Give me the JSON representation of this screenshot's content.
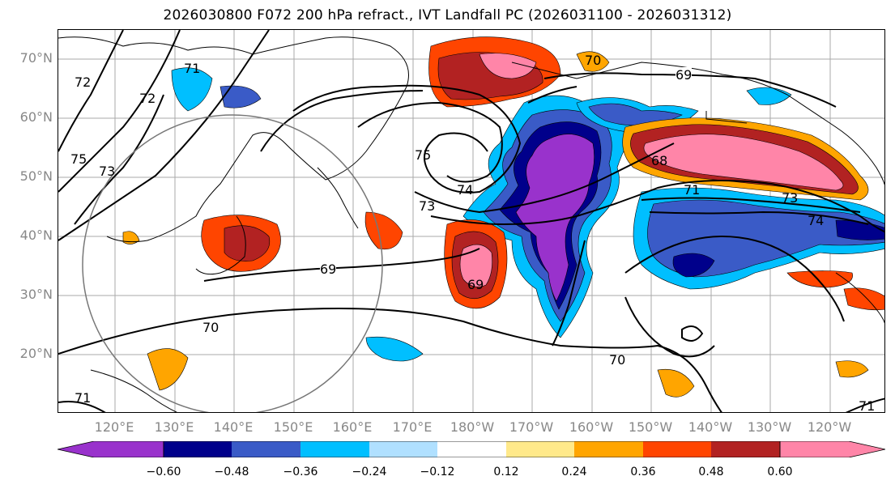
{
  "title": "2026030800 F072 200 hPa refract., IVT Landfall PC (2026031100 - 2026031312)",
  "map": {
    "lat_labels": [
      "70°N",
      "60°N",
      "50°N",
      "40°N",
      "30°N",
      "20°N"
    ],
    "lon_labels": [
      "120°E",
      "130°E",
      "140°E",
      "150°E",
      "160°E",
      "170°E",
      "180°W",
      "170°W",
      "160°W",
      "150°W",
      "140°W",
      "130°W",
      "120°W"
    ],
    "contour_labels": [
      "71",
      "72",
      "72",
      "75",
      "73",
      "75",
      "73",
      "74",
      "69",
      "70",
      "69",
      "68",
      "71",
      "74",
      "73",
      "70",
      "69",
      "71",
      "70",
      "71"
    ]
  },
  "colorbar": {
    "colors": [
      "#9932cc",
      "#00008b",
      "#3a5bc7",
      "#00bfff",
      "#b0e0ff",
      "#ffffff",
      "#ffe98a",
      "#ffa500",
      "#ff4500",
      "#b22222",
      "#ff85a8"
    ],
    "ticks": [
      "−0.60",
      "−0.48",
      "−0.36",
      "−0.24",
      "−0.12",
      "0.12",
      "0.24",
      "0.36",
      "0.48",
      "0.60"
    ]
  }
}
